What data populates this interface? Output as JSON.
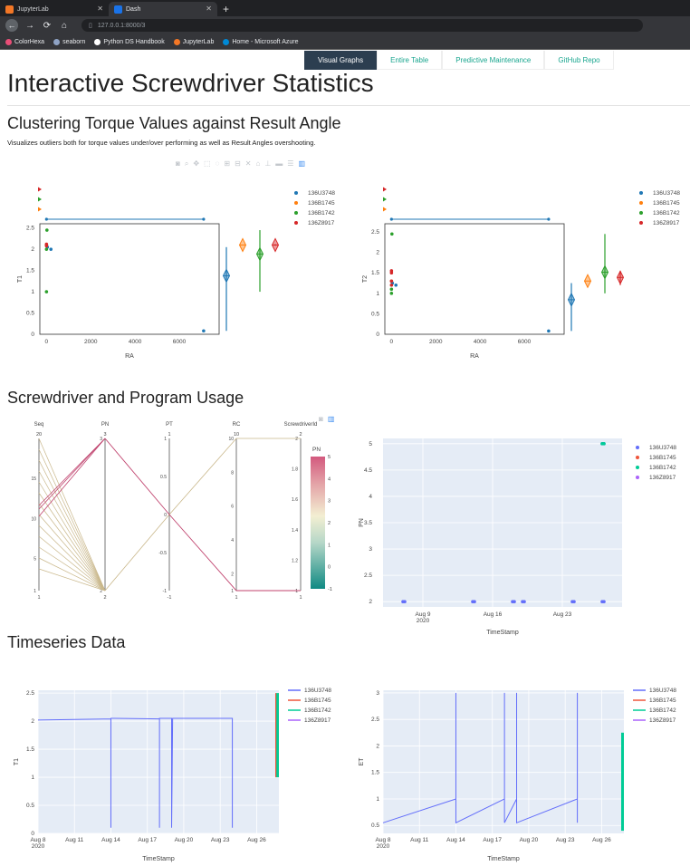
{
  "browser": {
    "tabs": [
      {
        "label": "JupyterLab",
        "color": "#f37726"
      },
      {
        "label": "Dash",
        "color": "#1a73e8"
      }
    ],
    "url": "127.0.0.1:8000/3",
    "bookmarks": [
      {
        "label": "ColorHexa",
        "color": "#e94e77"
      },
      {
        "label": "seaborn",
        "color": "#8fa3c5"
      },
      {
        "label": "Python DS Handbook",
        "color": "#ffffff"
      },
      {
        "label": "JupyterLab",
        "color": "#f37726"
      },
      {
        "label": "Home - Microsoft Azure",
        "color": "#0089d6"
      }
    ]
  },
  "nav": {
    "tabs": [
      "Visual Graphs",
      "Entire Table",
      "Predictive Maintenance",
      "GitHub Repo"
    ]
  },
  "page": {
    "title": "Interactive Screwdriver Statistics",
    "section1_title": "Clustering Torque Values against Result Angle",
    "section1_subtitle": "Visualizes outliers both for torque values under/over  performing as well as Result Angles overshooting.",
    "section2_title": "Screwdriver and Program Usage",
    "section3_title": "Timeseries Data"
  },
  "legend": {
    "series": [
      "136U3748",
      "136B1745",
      "136B1742",
      "136Z8917"
    ],
    "colors": [
      "#1f77b4",
      "#ff7f0e",
      "#2ca02c",
      "#d62728"
    ],
    "plotly_colors": [
      "#636efa",
      "#ef553b",
      "#00cc96",
      "#ab63fa"
    ]
  },
  "chart_data": [
    {
      "type": "scatter",
      "xlabel": "RA",
      "ylabel": "T1",
      "xticks": [
        "0",
        "2000",
        "4000",
        "6000"
      ],
      "yticks": [
        "0",
        "0.5",
        "1",
        "1.5",
        "2",
        "2.5"
      ],
      "xlim": [
        -300,
        7800
      ],
      "ylim": [
        0,
        2.6
      ],
      "series": [
        {
          "name": "136U3748",
          "points": [
            [
              40,
              2.05
            ],
            [
              200,
              2.0
            ],
            [
              7100,
              0.08
            ]
          ]
        },
        {
          "name": "136B1745",
          "points": [
            [
              0,
              2.1
            ]
          ]
        },
        {
          "name": "136B1742",
          "points": [
            [
              0,
              2.0
            ],
            [
              0,
              2.1
            ],
            [
              20,
              2.45
            ],
            [
              0,
              1.0
            ]
          ]
        },
        {
          "name": "136Z8917",
          "points": [
            [
              0,
              2.08
            ],
            [
              0,
              2.12
            ]
          ]
        }
      ]
    },
    {
      "type": "scatter",
      "xlabel": "RA",
      "ylabel": "T2",
      "xticks": [
        "0",
        "2000",
        "4000",
        "6000"
      ],
      "yticks": [
        "0",
        "0.5",
        "1",
        "1.5",
        "2",
        "2.5"
      ],
      "xlim": [
        -300,
        7800
      ],
      "ylim": [
        0,
        2.7
      ],
      "series": [
        {
          "name": "136U3748",
          "points": [
            [
              40,
              1.25
            ],
            [
              200,
              1.2
            ],
            [
              7100,
              0.08
            ]
          ]
        },
        {
          "name": "136B1745",
          "points": [
            [
              0,
              1.3
            ]
          ]
        },
        {
          "name": "136B1742",
          "points": [
            [
              0,
              1.0
            ],
            [
              0,
              1.1
            ],
            [
              20,
              2.45
            ]
          ]
        },
        {
          "name": "136Z8917",
          "points": [
            [
              0,
              1.2
            ],
            [
              0,
              1.5
            ],
            [
              0,
              1.55
            ],
            [
              0,
              1.3
            ]
          ]
        }
      ]
    },
    {
      "type": "parcoords",
      "dimensions": [
        {
          "label": "Seq",
          "range": [
            1,
            20
          ],
          "ticks": [
            "1",
            "5",
            "10",
            "15"
          ]
        },
        {
          "label": "PN",
          "range": [
            2,
            3
          ],
          "ticks": [
            "2",
            "3"
          ]
        },
        {
          "label": "PT",
          "range": [
            -1,
            1
          ],
          "ticks": [
            "-1",
            "-0.5",
            "0",
            "0.5",
            "1"
          ]
        },
        {
          "label": "RC",
          "range": [
            1,
            10
          ],
          "ticks": [
            "1",
            "2",
            "4",
            "6",
            "8",
            "10"
          ]
        },
        {
          "label": "ScrewdriverId",
          "range": [
            1,
            2
          ],
          "ticks": [
            "1",
            "1.2",
            "1.4",
            "1.6",
            "1.8",
            "2"
          ]
        }
      ],
      "colorbar": {
        "title": "PN",
        "ticks": [
          "-1",
          "0",
          "1",
          "2",
          "3",
          "4",
          "5"
        ]
      }
    },
    {
      "type": "scatter",
      "xlabel": "TimeStamp",
      "ylabel": "PN",
      "xticks": [
        "Aug 9\n2020",
        "Aug 16",
        "Aug 23"
      ],
      "yticks": [
        "2",
        "2.5",
        "3",
        "3.5",
        "4",
        "4.5",
        "5"
      ],
      "ylim": [
        1.9,
        5.1
      ],
      "series": [
        {
          "name": "136U3748",
          "points": [
            [
              "2020-08-07",
              2
            ],
            [
              "2020-08-14",
              2
            ],
            [
              "2020-08-18",
              2
            ],
            [
              "2020-08-19",
              2
            ],
            [
              "2020-08-24",
              2
            ],
            [
              "2020-08-27",
              2
            ],
            [
              "2020-08-27",
              5
            ]
          ]
        },
        {
          "name": "136B1745",
          "points": []
        },
        {
          "name": "136B1742",
          "points": [
            [
              "2020-08-27",
              5
            ]
          ]
        },
        {
          "name": "136Z8917",
          "points": []
        }
      ]
    },
    {
      "type": "line",
      "xlabel": "TimeStamp",
      "ylabel": "T1",
      "xticks": [
        "Aug 8\n2020",
        "Aug 11",
        "Aug 14",
        "Aug 17",
        "Aug 20",
        "Aug 23",
        "Aug 26"
      ],
      "yticks": [
        "0",
        "0.5",
        "1",
        "1.5",
        "2",
        "2.5"
      ],
      "ylim": [
        0,
        2.55
      ]
    },
    {
      "type": "line",
      "xlabel": "TimeStamp",
      "ylabel": "ET",
      "xticks": [
        "Aug 8\n2020",
        "Aug 11",
        "Aug 14",
        "Aug 17",
        "Aug 20",
        "Aug 23",
        "Aug 26"
      ],
      "yticks": [
        "0.5",
        "1",
        "1.5",
        "2",
        "2.5",
        "3"
      ],
      "ylim": [
        0.35,
        3.05
      ]
    }
  ]
}
